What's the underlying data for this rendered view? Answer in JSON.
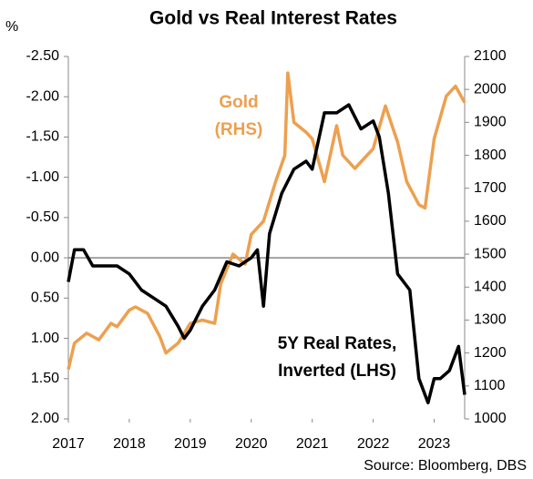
{
  "chart_data": {
    "type": "line",
    "title": "Gold vs Real Interest Rates",
    "y_unit": "%",
    "source": "Source: Bloomberg, DBS",
    "xlim": [
      2017,
      2023.5
    ],
    "xticks": [
      2017,
      2018,
      2019,
      2020,
      2021,
      2022,
      2023
    ],
    "ylim": [
      -2.5,
      2.0
    ],
    "y_inverted": true,
    "yticks": [
      {
        "value": -2.5,
        "label": "-2.50"
      },
      {
        "value": -2.0,
        "label": "-2.00"
      },
      {
        "value": -1.5,
        "label": "-1.50"
      },
      {
        "value": -1.0,
        "label": "-1.00"
      },
      {
        "value": -0.5,
        "label": "-0.50"
      },
      {
        "value": 0,
        "label": "0.00"
      },
      {
        "value": 0.5,
        "label": "0.50"
      },
      {
        "value": 1.0,
        "label": "1.00"
      },
      {
        "value": 1.5,
        "label": "1.50"
      },
      {
        "value": 2.0,
        "label": "2.00"
      }
    ],
    "y2lim": [
      1000,
      2100
    ],
    "y2ticks": [
      1000,
      1100,
      1200,
      1300,
      1400,
      1500,
      1600,
      1700,
      1800,
      1900,
      2000,
      2100
    ],
    "series": [
      {
        "name": "5Y Real Rates, Inverted (LHS)",
        "color": "#000000",
        "axis": "y",
        "x": [
          2017.0,
          2017.1,
          2017.25,
          2017.4,
          2017.6,
          2017.8,
          2018.0,
          2018.2,
          2018.4,
          2018.6,
          2018.8,
          2018.9,
          2019.0,
          2019.2,
          2019.4,
          2019.6,
          2019.8,
          2020.0,
          2020.1,
          2020.2,
          2020.3,
          2020.5,
          2020.7,
          2020.9,
          2021.0,
          2021.2,
          2021.4,
          2021.6,
          2021.8,
          2022.0,
          2022.1,
          2022.25,
          2022.4,
          2022.6,
          2022.75,
          2022.9,
          2023.0,
          2023.1,
          2023.25,
          2023.4,
          2023.5
        ],
        "values": [
          0.3,
          -0.1,
          -0.1,
          0.1,
          0.1,
          0.1,
          0.2,
          0.4,
          0.5,
          0.6,
          0.85,
          1.0,
          0.9,
          0.6,
          0.4,
          0.05,
          0.1,
          0.0,
          -0.1,
          0.6,
          -0.3,
          -0.8,
          -1.1,
          -1.2,
          -1.1,
          -1.8,
          -1.8,
          -1.9,
          -1.6,
          -1.7,
          -1.5,
          -0.8,
          0.2,
          0.4,
          1.5,
          1.8,
          1.5,
          1.5,
          1.4,
          1.1,
          1.7
        ]
      },
      {
        "name": "Gold (RHS)",
        "color": "#eda04f",
        "axis": "y2",
        "x": [
          2017.0,
          2017.1,
          2017.3,
          2017.5,
          2017.7,
          2017.8,
          2018.0,
          2018.1,
          2018.3,
          2018.5,
          2018.6,
          2018.8,
          2019.0,
          2019.2,
          2019.4,
          2019.5,
          2019.7,
          2019.9,
          2020.0,
          2020.2,
          2020.4,
          2020.55,
          2020.6,
          2020.7,
          2020.9,
          2021.0,
          2021.2,
          2021.4,
          2021.5,
          2021.7,
          2021.9,
          2022.0,
          2022.2,
          2022.4,
          2022.55,
          2022.75,
          2022.85,
          2023.0,
          2023.2,
          2023.35,
          2023.5
        ],
        "values": [
          1150,
          1230,
          1260,
          1240,
          1290,
          1280,
          1330,
          1340,
          1320,
          1250,
          1200,
          1230,
          1290,
          1300,
          1290,
          1410,
          1500,
          1470,
          1560,
          1600,
          1720,
          1800,
          2050,
          1900,
          1870,
          1850,
          1720,
          1890,
          1800,
          1760,
          1800,
          1820,
          1950,
          1840,
          1720,
          1650,
          1640,
          1850,
          1980,
          2010,
          1960
        ]
      }
    ],
    "annotations": [
      {
        "lines": [
          "Gold",
          "(RHS)"
        ],
        "color": "#eda04f"
      },
      {
        "lines": [
          "5Y Real Rates,",
          "Inverted (LHS)"
        ],
        "color": "#000000"
      }
    ]
  }
}
